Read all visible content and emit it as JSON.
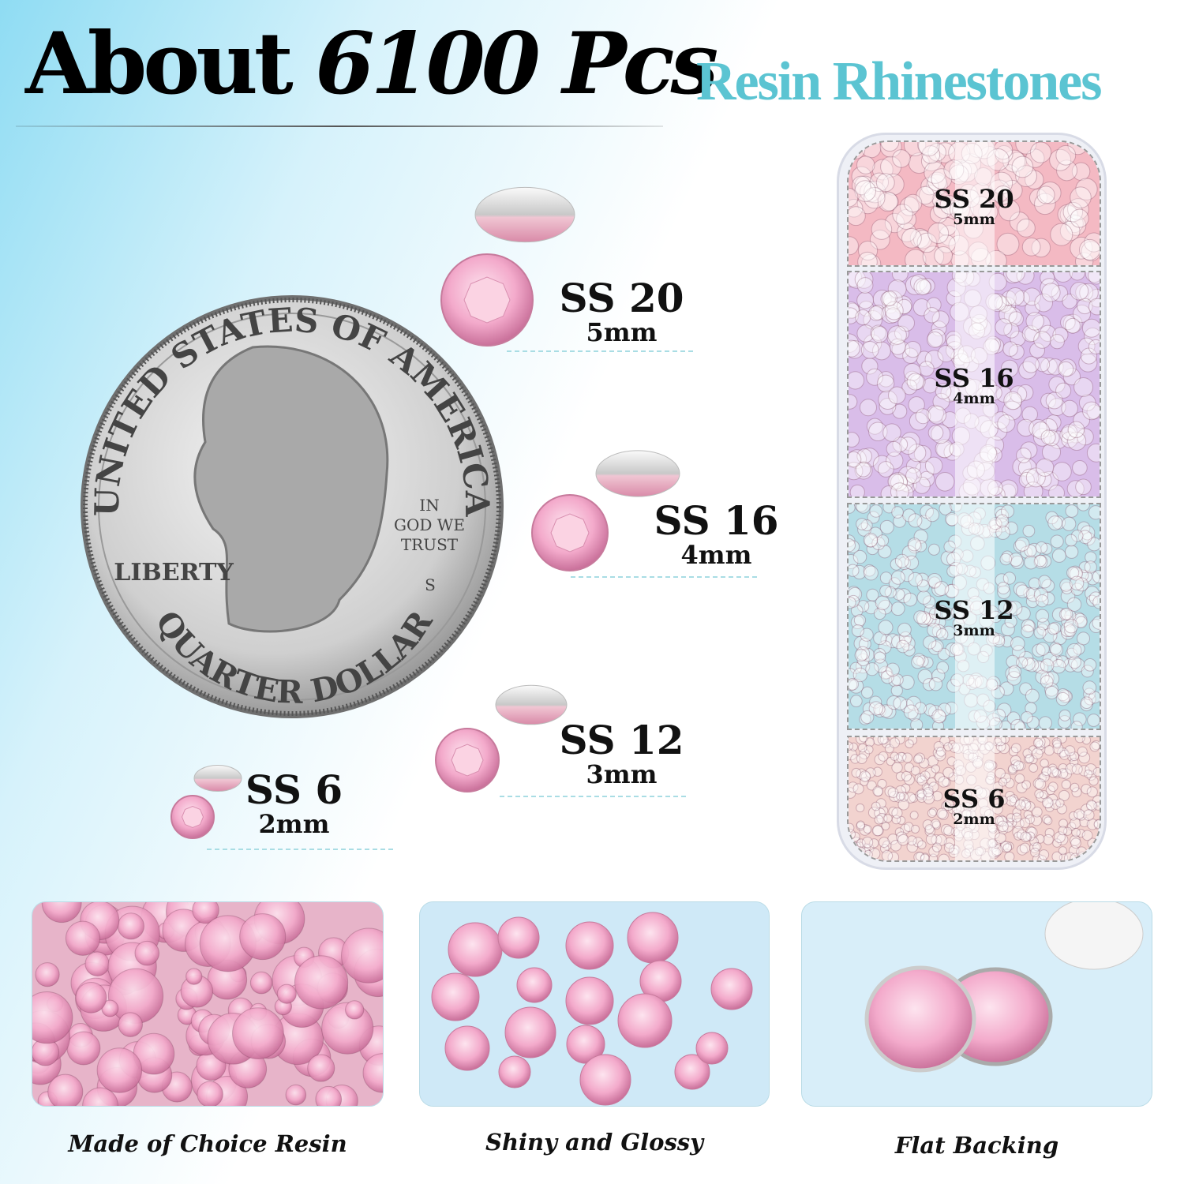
{
  "header": {
    "title_prefix": "About ",
    "title_count": "6100 Pcs",
    "subtitle": "Resin Rhinestones"
  },
  "coin": {
    "top_text": "UNITED STATES OF AMERICA",
    "motto": [
      "IN",
      "GOD WE",
      "TRUST"
    ],
    "liberty": "LIBERTY",
    "bottom_text": "QUARTER DOLLAR",
    "mint": "S"
  },
  "sizes": [
    {
      "label": "SS 20",
      "mm": "5mm"
    },
    {
      "label": "SS 16",
      "mm": "4mm"
    },
    {
      "label": "SS 12",
      "mm": "3mm"
    },
    {
      "label": "SS 6",
      "mm": "2mm"
    }
  ],
  "box": {
    "compartments": [
      {
        "label": "SS 20",
        "mm": "5mm",
        "color": "#f4b9c3"
      },
      {
        "label": "SS 16",
        "mm": "4mm",
        "color": "#d9bde9"
      },
      {
        "label": "SS 12",
        "mm": "3mm",
        "color": "#b5dde6"
      },
      {
        "label": "SS 6",
        "mm": "2mm",
        "color": "#f2d3cf"
      }
    ]
  },
  "features": [
    {
      "caption": "Made of Choice Resin"
    },
    {
      "caption": "Shiny and Glossy"
    },
    {
      "caption": "Flat Backing"
    }
  ],
  "colors": {
    "accent": "#5bc4d2",
    "stone": "#f2b6cc"
  }
}
